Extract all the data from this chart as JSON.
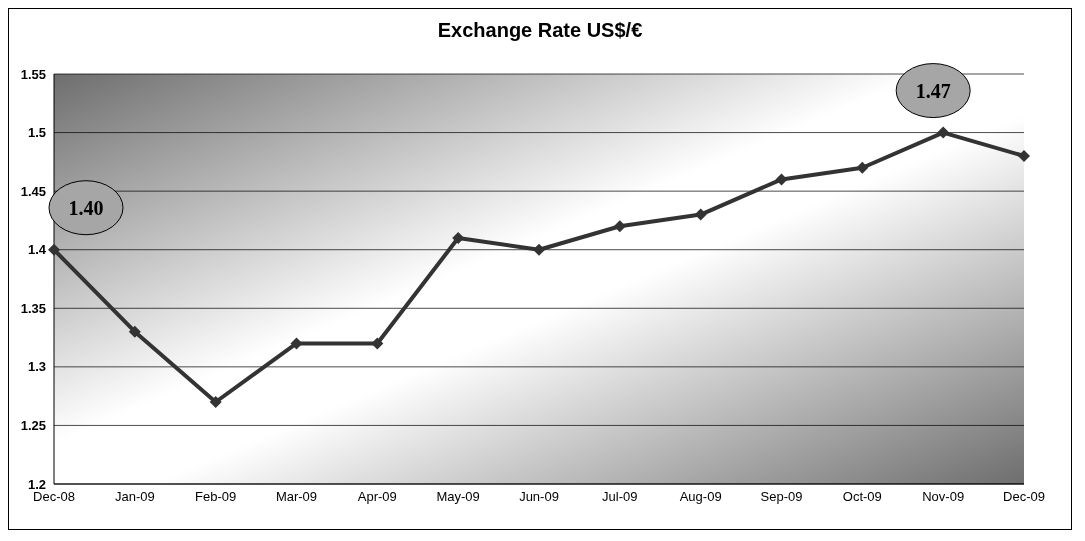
{
  "chart_data": {
    "type": "line",
    "title": "Exchange Rate US$/€",
    "categories": [
      "Dec-08",
      "Jan-09",
      "Feb-09",
      "Mar-09",
      "Apr-09",
      "May-09",
      "Jun-09",
      "Jul-09",
      "Aug-09",
      "Sep-09",
      "Oct-09",
      "Nov-09",
      "Dec-09"
    ],
    "series": [
      {
        "color": "#333333",
        "values": [
          1.4,
          1.33,
          1.27,
          1.32,
          1.32,
          1.41,
          1.4,
          1.42,
          1.43,
          1.46,
          1.47,
          1.5,
          1.48
        ]
      }
    ],
    "ylim": [
      1.2,
      1.55
    ],
    "yticks": [
      1.2,
      1.25,
      1.3,
      1.35,
      1.4,
      1.45,
      1.5,
      1.55
    ],
    "grid": "y",
    "legend": false,
    "marker": "diamond",
    "line_style": "solid",
    "annotations": [
      {
        "text": "1.40",
        "x": "Dec-08",
        "y": 1.4
      },
      {
        "text": "1.47",
        "x": "Nov-09",
        "y": 1.5
      }
    ]
  }
}
